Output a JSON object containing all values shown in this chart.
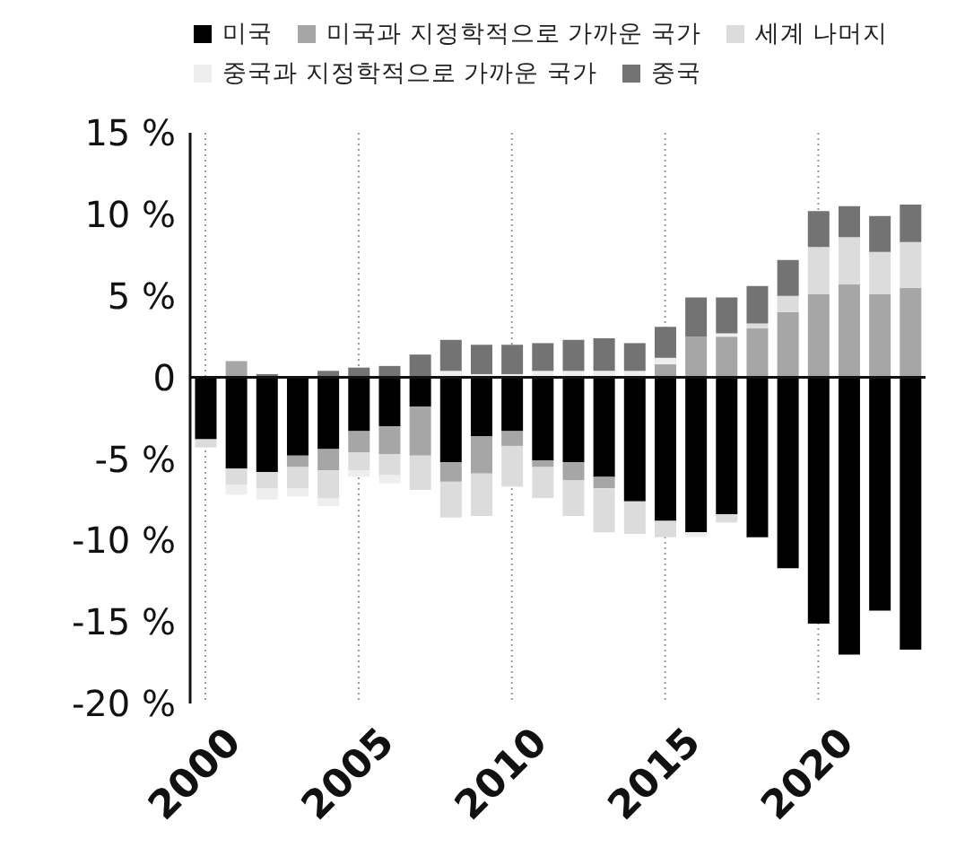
{
  "chart_data": {
    "type": "bar",
    "stacked": true,
    "legend": "top",
    "grid": "x",
    "categories": [
      "2000",
      null,
      null,
      null,
      null,
      "2005",
      null,
      null,
      null,
      null,
      "2010",
      null,
      null,
      null,
      null,
      "2015",
      null,
      null,
      null,
      null,
      "2020",
      null,
      null,
      null
    ],
    "series": [
      {
        "name": "미국",
        "color": "#000000",
        "values": [
          -3.8,
          -5.6,
          -5.8,
          -4.8,
          -4.4,
          -3.3,
          -3.0,
          -1.8,
          -5.2,
          -3.6,
          -3.3,
          -5.1,
          -5.2,
          -6.1,
          -7.6,
          -8.8,
          -9.5,
          -8.4,
          -9.8,
          -11.7,
          -15.1,
          -17.0,
          -14.3,
          -16.7
        ]
      },
      {
        "name": "미국과 지정학적으로 가까운 국가",
        "color": "#a6a6a6",
        "values": [
          null,
          1.0,
          null,
          -0.7,
          -1.3,
          -1.3,
          -1.7,
          -3.0,
          -1.2,
          -2.3,
          -0.9,
          -0.4,
          -1.1,
          -0.7,
          null,
          0.8,
          2.5,
          2.5,
          3.0,
          4.0,
          5.1,
          5.7,
          5.1,
          5.5
        ]
      },
      {
        "name": "세계 나머지",
        "color": "#dcdcdc",
        "values": [
          -0.5,
          -1.0,
          -1.0,
          -1.3,
          -1.7,
          -1.1,
          -1.3,
          -2.1,
          -2.2,
          -2.6,
          -2.5,
          -1.9,
          -2.2,
          -2.7,
          -2.0,
          -1.0,
          null,
          -0.5,
          0.3,
          1.0,
          2.9,
          2.9,
          2.6,
          2.8
        ]
      },
      {
        "name": "중국과 지정학적으로 가까운 국가",
        "color": "#eeeeee",
        "values": [
          null,
          -0.6,
          -0.7,
          -0.5,
          -0.5,
          -0.4,
          -0.5,
          null,
          0.4,
          0.2,
          0.2,
          0.4,
          0.4,
          0.4,
          0.4,
          0.4,
          -0.3,
          0.2,
          null,
          null,
          null,
          null,
          null,
          null
        ]
      },
      {
        "name": "중국",
        "color": "#737373",
        "values": [
          null,
          null,
          0.2,
          null,
          0.4,
          0.6,
          0.7,
          1.4,
          1.9,
          1.8,
          1.8,
          1.7,
          1.9,
          2.0,
          1.7,
          1.9,
          2.4,
          2.2,
          2.3,
          2.2,
          2.2,
          1.9,
          2.2,
          2.3
        ]
      }
    ],
    "ylim": [
      -20,
      15
    ],
    "yticks": [
      {
        "value": 15,
        "label": "15 %"
      },
      {
        "value": 10,
        "label": "10 %"
      },
      {
        "value": 5,
        "label": "5 %"
      },
      {
        "value": 0,
        "label": "0"
      },
      {
        "value": -5,
        "label": "-5 %"
      },
      {
        "value": -10,
        "label": "-10 %"
      },
      {
        "value": -15,
        "label": "-15 %"
      },
      {
        "value": -20,
        "label": "-20 %"
      }
    ]
  }
}
